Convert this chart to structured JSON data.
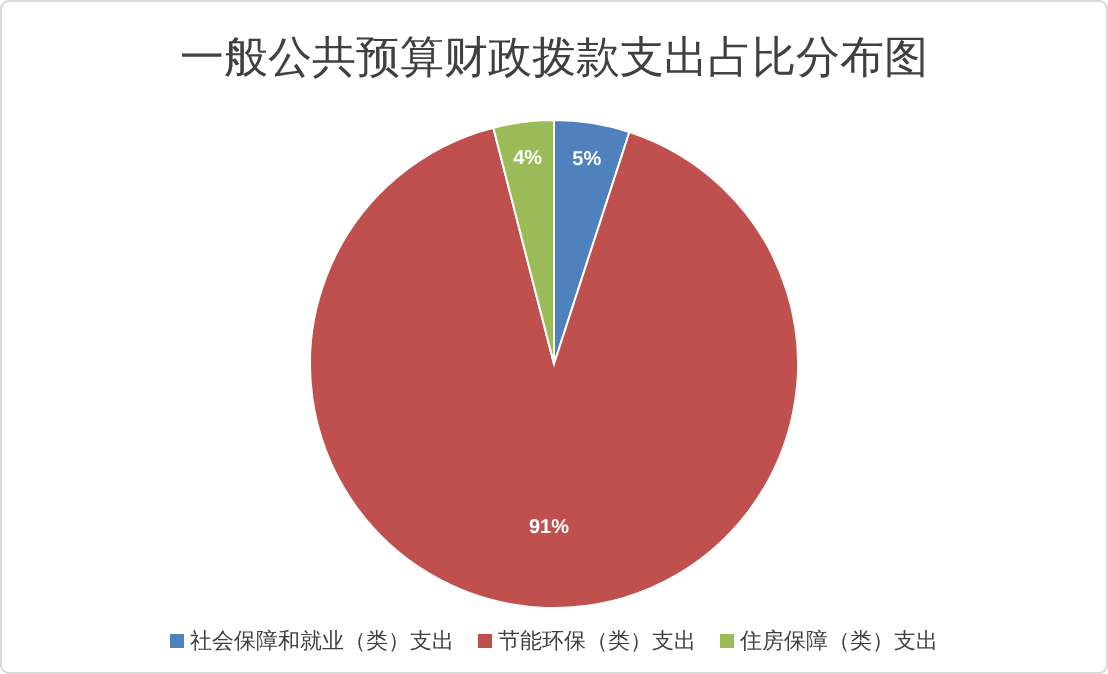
{
  "chart_data": {
    "type": "pie",
    "title": "一般公共预算财政拨款支出占比分布图",
    "categories": [
      "社会保障和就业（类）支出",
      "节能环保（类）支出",
      "住房保障（类）支出"
    ],
    "values": [
      5,
      91,
      4
    ],
    "colors": [
      "#4f81bd",
      "#c0504d",
      "#9bbb59"
    ],
    "value_labels": [
      "5%",
      "91%",
      "4%"
    ],
    "legend": "bottom"
  }
}
